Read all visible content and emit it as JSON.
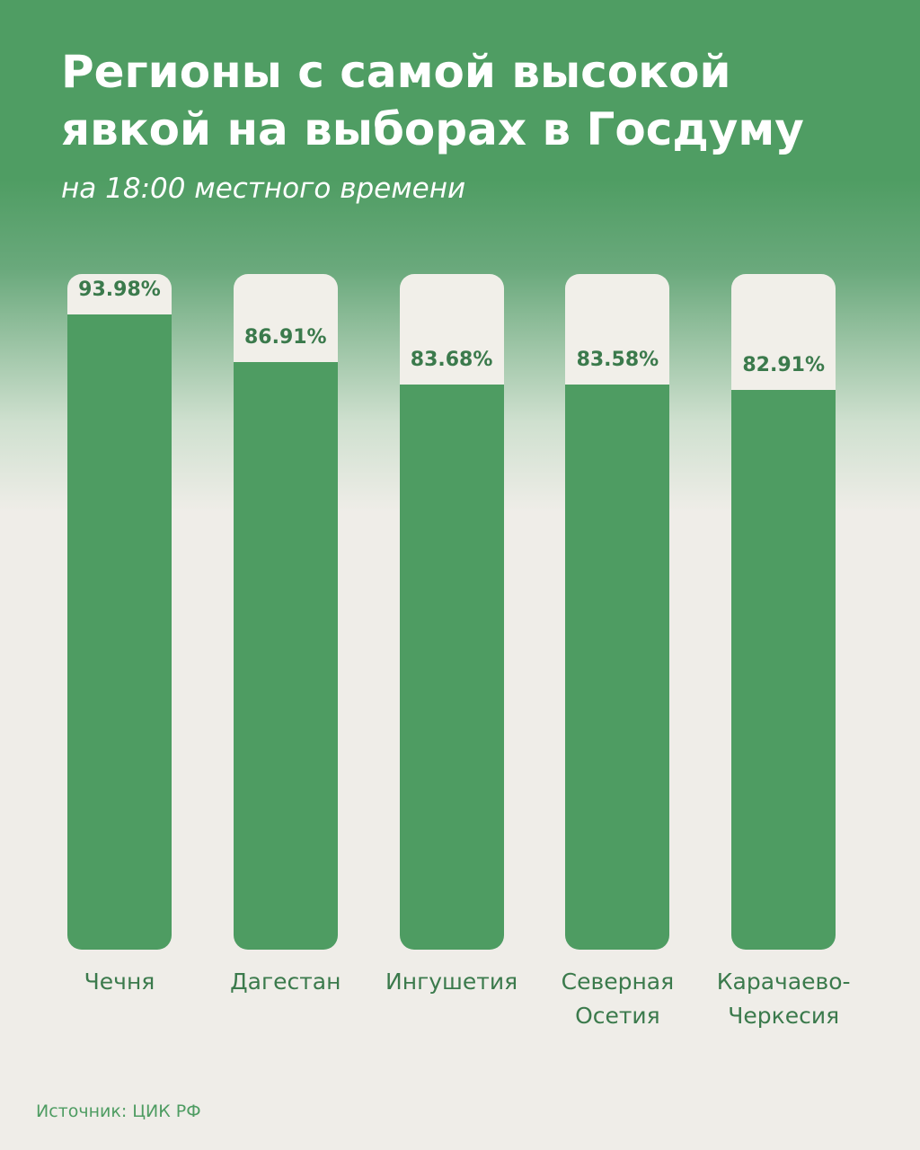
{
  "chart_data": {
    "type": "bar",
    "title": "Регионы с самой высокой явкой на выборах в Госдуму",
    "subtitle": "на 18:00 местного времени",
    "categories": [
      "Чечня",
      "Дагестан",
      "Ингушетия",
      "Северная Осетия",
      "Карачаево-Черкесия"
    ],
    "values": [
      93.98,
      86.91,
      83.68,
      83.58,
      82.91
    ],
    "value_labels": [
      "93.98%",
      "86.91%",
      "83.68%",
      "83.58%",
      "82.91%"
    ],
    "ylim": [
      0,
      100
    ],
    "color": "#4e9c62",
    "source": "Источник: ЦИК РФ"
  }
}
